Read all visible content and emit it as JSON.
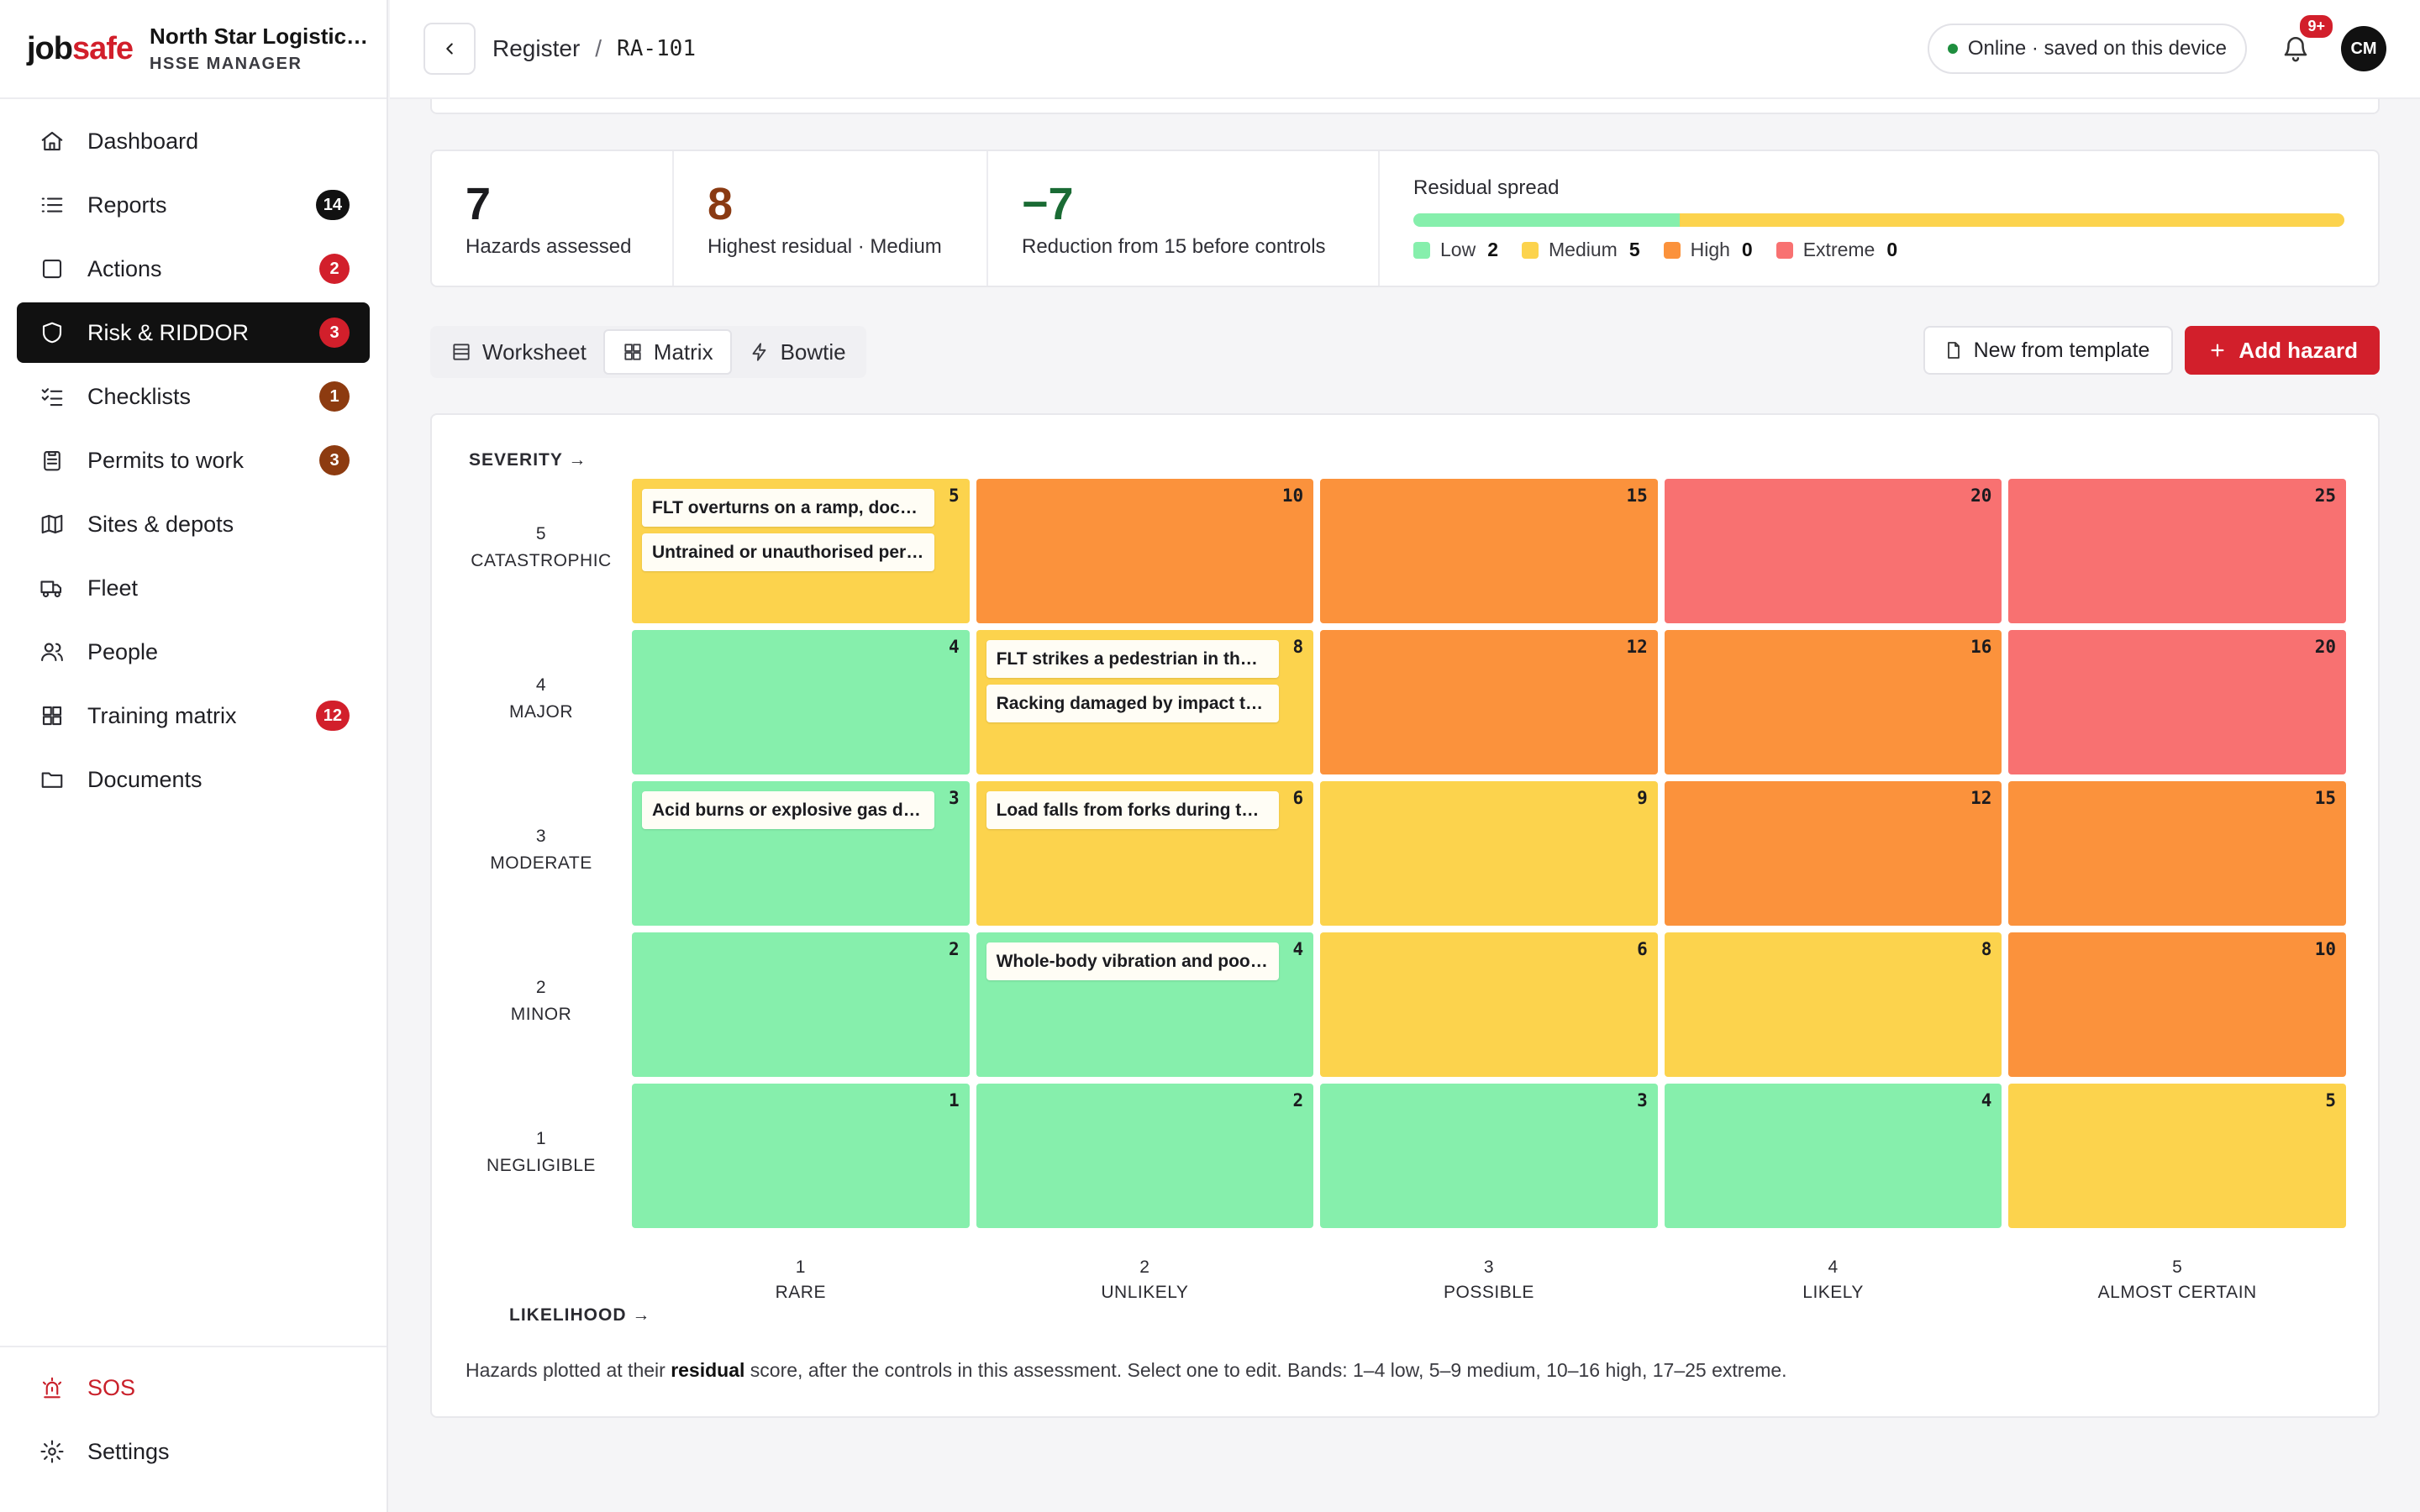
{
  "app": {
    "logo_a": "job",
    "logo_b": "safe",
    "org_name": "North Star Logistic…",
    "org_role": "HSSE MANAGER"
  },
  "sidebar": {
    "items": [
      {
        "label": "Dashboard",
        "icon": "home-icon",
        "badge": ""
      },
      {
        "label": "Reports",
        "icon": "list-icon",
        "badge": "14",
        "badge_style": "dark"
      },
      {
        "label": "Actions",
        "icon": "checkbox-icon",
        "badge": "2",
        "badge_style": "red"
      },
      {
        "label": "Risk & RIDDOR",
        "icon": "shield-icon",
        "badge": "3",
        "badge_style": "red",
        "active": true
      },
      {
        "label": "Checklists",
        "icon": "checklist-icon",
        "badge": "1",
        "badge_style": "brown"
      },
      {
        "label": "Permits to work",
        "icon": "clipboard-icon",
        "badge": "3",
        "badge_style": "brown"
      },
      {
        "label": "Sites & depots",
        "icon": "map-icon",
        "badge": ""
      },
      {
        "label": "Fleet",
        "icon": "truck-icon",
        "badge": ""
      },
      {
        "label": "People",
        "icon": "people-icon",
        "badge": ""
      },
      {
        "label": "Training matrix",
        "icon": "grid-icon",
        "badge": "12",
        "badge_style": "red"
      },
      {
        "label": "Documents",
        "icon": "folder-icon",
        "badge": ""
      }
    ],
    "bottom": [
      {
        "label": "SOS",
        "icon": "siren-icon"
      },
      {
        "label": "Settings",
        "icon": "gear-icon"
      }
    ]
  },
  "topbar": {
    "crumb_parent": "Register",
    "crumb_sep": "/",
    "crumb_current": "RA-101",
    "status": "Online · saved on this device",
    "notif_count": "9+",
    "avatar_initials": "CM"
  },
  "stats": {
    "hazards_num": "7",
    "hazards_label": "Hazards assessed",
    "highest_num": "8",
    "highest_label": "Highest residual · Medium",
    "reduction_num": "−7",
    "reduction_label": "Reduction from 15 before controls",
    "spread_title": "Residual spread",
    "spread": [
      {
        "label": "Low",
        "count": "2",
        "value": 2,
        "color": "#86efac"
      },
      {
        "label": "Medium",
        "count": "5",
        "value": 5,
        "color": "#fcd34d"
      },
      {
        "label": "High",
        "count": "0",
        "value": 0,
        "color": "#fb923c"
      },
      {
        "label": "Extreme",
        "count": "0",
        "value": 0,
        "color": "#f87171"
      }
    ]
  },
  "tabs": [
    {
      "label": "Worksheet",
      "icon": "table-icon"
    },
    {
      "label": "Matrix",
      "icon": "grid-icon",
      "active": true
    },
    {
      "label": "Bowtie",
      "icon": "bolt-icon"
    }
  ],
  "actions": {
    "template_label": "New from template",
    "add_label": "Add hazard"
  },
  "matrix": {
    "severity_axis": "SEVERITY →",
    "likelihood_axis": "LIKELIHOOD →",
    "rows": [
      {
        "num": "5",
        "name": "CATASTROPHIC"
      },
      {
        "num": "4",
        "name": "MAJOR"
      },
      {
        "num": "3",
        "name": "MODERATE"
      },
      {
        "num": "2",
        "name": "MINOR"
      },
      {
        "num": "1",
        "name": "NEGLIGIBLE"
      }
    ],
    "cols": [
      {
        "num": "1",
        "name": "RARE"
      },
      {
        "num": "2",
        "name": "UNLIKELY"
      },
      {
        "num": "3",
        "name": "POSSIBLE"
      },
      {
        "num": "4",
        "name": "LIKELY"
      },
      {
        "num": "5",
        "name": "ALMOST CERTAIN"
      }
    ],
    "cells": [
      [
        {
          "score": "5",
          "band": "med",
          "hazards": [
            "FLT overturns on a ramp, dock …",
            "Untrained or unauthorised pers…"
          ]
        },
        {
          "score": "10",
          "band": "high",
          "hazards": []
        },
        {
          "score": "15",
          "band": "high",
          "hazards": []
        },
        {
          "score": "20",
          "band": "ext",
          "hazards": []
        },
        {
          "score": "25",
          "band": "ext",
          "hazards": []
        }
      ],
      [
        {
          "score": "4",
          "band": "low",
          "hazards": []
        },
        {
          "score": "8",
          "band": "med",
          "hazards": [
            "FLT strikes a pedestrian in th…",
            "Racking damaged by impact then…"
          ]
        },
        {
          "score": "12",
          "band": "high",
          "hazards": []
        },
        {
          "score": "16",
          "band": "high",
          "hazards": []
        },
        {
          "score": "20",
          "band": "ext",
          "hazards": []
        }
      ],
      [
        {
          "score": "3",
          "band": "low",
          "hazards": [
            "Acid burns or explosive gas du…"
          ]
        },
        {
          "score": "6",
          "band": "med",
          "hazards": [
            "Load falls from forks during t…"
          ]
        },
        {
          "score": "9",
          "band": "med",
          "hazards": []
        },
        {
          "score": "12",
          "band": "high",
          "hazards": []
        },
        {
          "score": "15",
          "band": "high",
          "hazards": []
        }
      ],
      [
        {
          "score": "2",
          "band": "low",
          "hazards": []
        },
        {
          "score": "4",
          "band": "low",
          "hazards": [
            "Whole-body vibration and poor …"
          ]
        },
        {
          "score": "6",
          "band": "med",
          "hazards": []
        },
        {
          "score": "8",
          "band": "med",
          "hazards": []
        },
        {
          "score": "10",
          "band": "high",
          "hazards": []
        }
      ],
      [
        {
          "score": "1",
          "band": "low",
          "hazards": []
        },
        {
          "score": "2",
          "band": "low",
          "hazards": []
        },
        {
          "score": "3",
          "band": "low",
          "hazards": []
        },
        {
          "score": "4",
          "band": "low",
          "hazards": []
        },
        {
          "score": "5",
          "band": "med",
          "hazards": []
        }
      ]
    ],
    "note_pre": "Hazards plotted at their ",
    "note_bold": "residual",
    "note_post": " score, after the controls in this assessment. Select one to edit. Bands: 1–4 low, 5–9 medium, 10–16 high, 17–25 extreme."
  }
}
